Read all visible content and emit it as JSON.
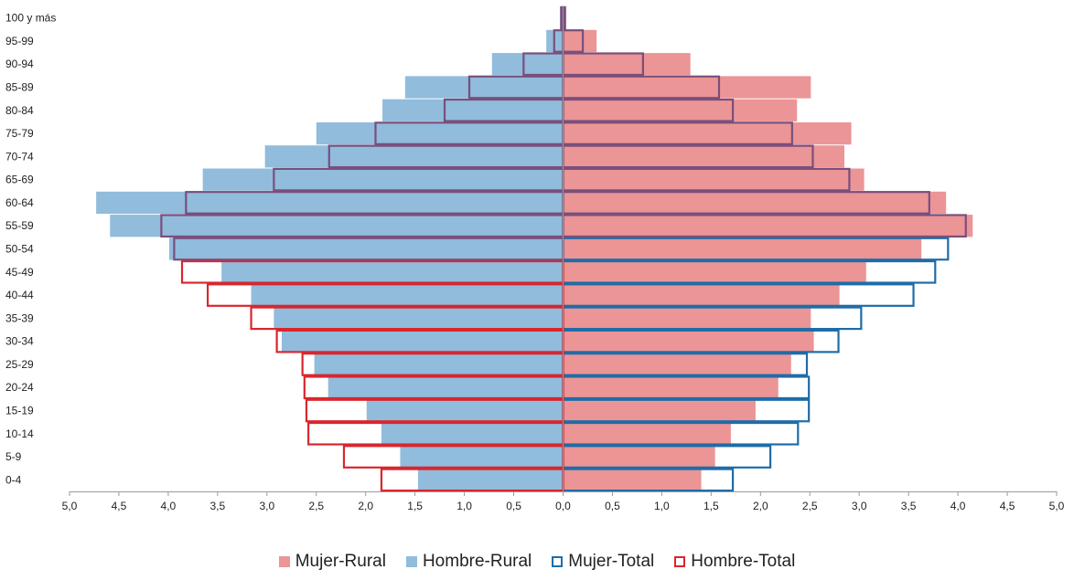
{
  "chart_data": {
    "type": "bar",
    "orientation": "horizontal",
    "categories": [
      "0-4",
      "5-9",
      "10-14",
      "15-19",
      "20-24",
      "25-29",
      "30-34",
      "35-39",
      "40-44",
      "45-49",
      "50-54",
      "55-59",
      "60-64",
      "65-69",
      "70-74",
      "75-79",
      "80-84",
      "85-89",
      "90-94",
      "95-99",
      "100 y más"
    ],
    "xlim": [
      -5.0,
      5.0
    ],
    "xticks": [
      -5.0,
      -4.5,
      -4.0,
      -3.5,
      -3.0,
      -2.5,
      -2.0,
      -1.5,
      -1.0,
      -0.5,
      0.0,
      0.5,
      1.0,
      1.5,
      2.0,
      2.5,
      3.0,
      3.5,
      4.0,
      4.5,
      5.0
    ],
    "xtick_labels": [
      "5,0",
      "4,5",
      "4,0",
      "3,5",
      "3,0",
      "2,5",
      "2,0",
      "1,5",
      "1,0",
      "0,5",
      "0,0",
      "0,5",
      "1,0",
      "1,5",
      "2,0",
      "2,5",
      "3,0",
      "3,5",
      "4,0",
      "4,5",
      "5,0"
    ],
    "series": [
      {
        "name": "Mujer-Rural",
        "side": "right",
        "style": "filled",
        "color": "#EB9596",
        "values": [
          1.4,
          1.54,
          1.7,
          1.95,
          2.18,
          2.31,
          2.54,
          2.51,
          2.8,
          3.07,
          3.63,
          4.15,
          3.88,
          3.05,
          2.85,
          2.92,
          2.37,
          2.51,
          1.29,
          0.34,
          0.03
        ]
      },
      {
        "name": "Hombre-Rural",
        "side": "left",
        "style": "filled",
        "color": "#91BCDC",
        "values": [
          1.47,
          1.65,
          1.84,
          1.99,
          2.38,
          2.52,
          2.85,
          2.93,
          3.16,
          3.46,
          3.99,
          4.59,
          4.73,
          3.65,
          3.02,
          2.5,
          1.83,
          1.6,
          0.72,
          0.17,
          0.03
        ]
      },
      {
        "name": "Mujer-Total",
        "side": "right",
        "style": "outline",
        "color": "#1F6CA8",
        "values": [
          1.72,
          2.1,
          2.38,
          2.49,
          2.49,
          2.47,
          2.79,
          3.02,
          3.55,
          3.77,
          3.9,
          4.08,
          3.71,
          2.9,
          2.53,
          2.32,
          1.72,
          1.58,
          0.81,
          0.2,
          0.02
        ]
      },
      {
        "name": "Hombre-Total",
        "side": "left",
        "style": "outline",
        "color": "#D9262E",
        "values": [
          1.84,
          2.22,
          2.58,
          2.6,
          2.62,
          2.64,
          2.9,
          3.16,
          3.6,
          3.86,
          3.94,
          4.07,
          3.82,
          2.93,
          2.37,
          1.9,
          1.2,
          0.95,
          0.4,
          0.09,
          0.02
        ]
      }
    ],
    "outline_overlap_color": "#7A4F7C",
    "legend_position": "bottom",
    "grid": false
  }
}
